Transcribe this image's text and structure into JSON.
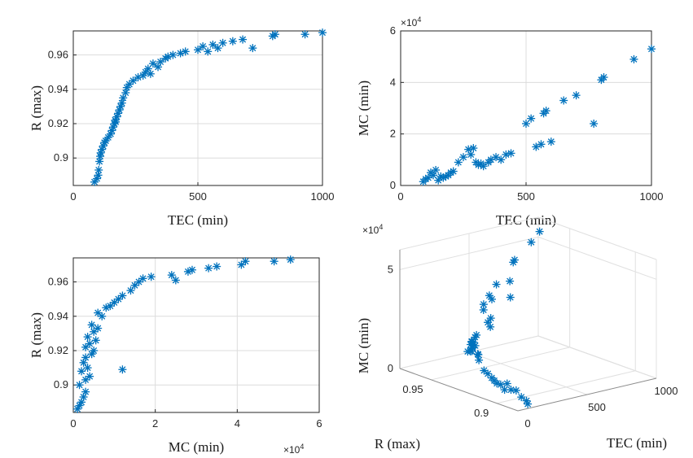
{
  "colors": {
    "marker": "#0072BD",
    "axis": "#262626",
    "grid": "#dcdcdc"
  },
  "chart_data": [
    {
      "id": "tl",
      "type": "scatter",
      "marker": "asterisk",
      "xlabel": "TEC    (min)",
      "ylabel": "R (max)",
      "xlim": [
        0,
        1000
      ],
      "ylim": [
        0.884,
        0.974
      ],
      "xticks": [
        0,
        500,
        1000
      ],
      "yticks": [
        0.9,
        0.92,
        0.94,
        0.96
      ],
      "xtick_labels": [
        "0",
        "500",
        "1000"
      ],
      "ytick_labels": [
        "0.9",
        "0.92",
        "0.94",
        "0.96"
      ],
      "grid": true,
      "x": [
        85,
        95,
        100,
        102,
        105,
        108,
        110,
        115,
        120,
        125,
        130,
        140,
        150,
        155,
        160,
        165,
        168,
        170,
        175,
        180,
        185,
        190,
        195,
        200,
        210,
        215,
        225,
        240,
        260,
        280,
        290,
        300,
        310,
        320,
        340,
        350,
        370,
        380,
        400,
        430,
        450,
        500,
        520,
        540,
        560,
        580,
        600,
        640,
        680,
        720,
        800,
        810,
        930,
        1000
      ],
      "y": [
        0.886,
        0.888,
        0.89,
        0.893,
        0.898,
        0.901,
        0.903,
        0.905,
        0.907,
        0.909,
        0.91,
        0.912,
        0.914,
        0.916,
        0.918,
        0.92,
        0.922,
        0.921,
        0.924,
        0.926,
        0.928,
        0.93,
        0.932,
        0.935,
        0.938,
        0.941,
        0.943,
        0.945,
        0.947,
        0.948,
        0.95,
        0.952,
        0.949,
        0.955,
        0.953,
        0.956,
        0.958,
        0.959,
        0.96,
        0.961,
        0.962,
        0.963,
        0.965,
        0.962,
        0.966,
        0.964,
        0.967,
        0.968,
        0.969,
        0.964,
        0.971,
        0.972,
        0.972,
        0.973
      ]
    },
    {
      "id": "tr",
      "type": "scatter",
      "marker": "asterisk",
      "xlabel": "TEC    (min)",
      "ylabel": "MC  (min)",
      "xlim": [
        0,
        1000
      ],
      "ylim": [
        0,
        6
      ],
      "xticks": [
        0,
        500,
        1000
      ],
      "yticks": [
        0,
        2,
        4,
        6
      ],
      "xtick_labels": [
        "0",
        "500",
        "1000"
      ],
      "ytick_labels": [
        "0",
        "2",
        "4",
        "6"
      ],
      "exponent_label": "×10",
      "exponent_power": "4",
      "grid": true,
      "x": [
        90,
        100,
        110,
        120,
        130,
        140,
        150,
        160,
        170,
        180,
        190,
        200,
        210,
        230,
        250,
        270,
        280,
        290,
        300,
        310,
        320,
        330,
        350,
        360,
        380,
        400,
        420,
        440,
        500,
        520,
        540,
        560,
        570,
        580,
        600,
        650,
        700,
        770,
        800,
        810,
        930,
        1000
      ],
      "y": [
        0.15,
        0.25,
        0.3,
        0.5,
        0.4,
        0.6,
        0.2,
        0.35,
        0.3,
        0.35,
        0.4,
        0.5,
        0.55,
        0.9,
        1.1,
        1.4,
        1.2,
        1.45,
        0.9,
        0.8,
        0.85,
        0.75,
        0.9,
        1.0,
        1.1,
        1.0,
        1.2,
        1.25,
        2.4,
        2.6,
        1.5,
        1.6,
        2.8,
        2.9,
        1.7,
        3.3,
        3.5,
        2.4,
        4.1,
        4.2,
        4.9,
        5.3
      ]
    },
    {
      "id": "bl",
      "type": "scatter",
      "marker": "asterisk",
      "xlabel": "MC    (min)",
      "ylabel": "R (max)",
      "xlim": [
        0,
        6
      ],
      "ylim": [
        0.884,
        0.974
      ],
      "xticks": [
        0,
        2,
        4,
        6
      ],
      "yticks": [
        0.9,
        0.92,
        0.94,
        0.96
      ],
      "xtick_labels": [
        "0",
        "2",
        "4",
        "6"
      ],
      "ytick_labels": [
        "0.9",
        "0.92",
        "0.94",
        "0.96"
      ],
      "exponent_label": "×10",
      "exponent_power": "4",
      "grid": true,
      "x": [
        0.1,
        0.15,
        0.2,
        0.25,
        0.3,
        0.15,
        0.3,
        0.4,
        0.2,
        0.35,
        0.25,
        0.3,
        0.45,
        0.5,
        0.3,
        0.4,
        0.55,
        0.35,
        0.5,
        0.6,
        0.45,
        0.7,
        0.6,
        1.2,
        0.8,
        0.9,
        1.0,
        1.1,
        1.2,
        1.4,
        1.5,
        1.6,
        1.7,
        1.9,
        2.4,
        2.5,
        2.8,
        2.9,
        3.3,
        3.5,
        4.1,
        4.2,
        4.9,
        5.3
      ],
      "y": [
        0.886,
        0.888,
        0.89,
        0.893,
        0.896,
        0.9,
        0.903,
        0.905,
        0.908,
        0.91,
        0.913,
        0.916,
        0.918,
        0.92,
        0.922,
        0.924,
        0.926,
        0.928,
        0.931,
        0.933,
        0.935,
        0.94,
        0.942,
        0.909,
        0.945,
        0.946,
        0.948,
        0.95,
        0.952,
        0.955,
        0.958,
        0.96,
        0.962,
        0.963,
        0.964,
        0.961,
        0.966,
        0.967,
        0.968,
        0.969,
        0.97,
        0.972,
        0.972,
        0.973
      ]
    },
    {
      "id": "br",
      "type": "scatter3d",
      "marker": "asterisk",
      "xlabel": "TEC    (min)",
      "ylabel": "R (max)",
      "zlabel": "MC  (min)",
      "xlim": [
        0,
        1000
      ],
      "ylim": [
        0.884,
        0.974
      ],
      "zlim": [
        0,
        6
      ],
      "xticks": [
        0,
        500,
        1000
      ],
      "yticks": [
        0.9,
        0.95
      ],
      "zticks": [
        0,
        5
      ],
      "xtick_labels": [
        "0",
        "500",
        "1000"
      ],
      "ytick_labels": [
        "0.9",
        "0.95"
      ],
      "ztick_labels": [
        "0",
        "5"
      ],
      "exponent_label": "×10",
      "exponent_power": "4",
      "grid": true,
      "x": [
        90,
        100,
        110,
        120,
        130,
        140,
        150,
        160,
        170,
        180,
        190,
        200,
        210,
        230,
        250,
        270,
        280,
        290,
        300,
        310,
        320,
        330,
        350,
        360,
        380,
        400,
        420,
        440,
        500,
        520,
        540,
        560,
        570,
        580,
        600,
        650,
        700,
        770,
        800,
        810,
        930,
        1000
      ],
      "y": [
        0.886,
        0.888,
        0.893,
        0.898,
        0.903,
        0.907,
        0.91,
        0.914,
        0.918,
        0.921,
        0.924,
        0.928,
        0.932,
        0.938,
        0.941,
        0.945,
        0.948,
        0.95,
        0.952,
        0.955,
        0.953,
        0.949,
        0.956,
        0.958,
        0.959,
        0.96,
        0.961,
        0.962,
        0.963,
        0.965,
        0.962,
        0.966,
        0.964,
        0.967,
        0.968,
        0.969,
        0.964,
        0.971,
        0.972,
        0.972,
        0.972,
        0.973
      ],
      "z": [
        0.15,
        0.25,
        0.3,
        0.5,
        0.4,
        0.6,
        0.2,
        0.35,
        0.3,
        0.35,
        0.4,
        0.5,
        0.55,
        0.9,
        1.1,
        1.4,
        1.2,
        1.45,
        0.9,
        0.8,
        0.85,
        0.75,
        0.9,
        1.0,
        1.1,
        1.0,
        1.2,
        1.25,
        2.4,
        2.6,
        1.5,
        1.6,
        2.8,
        2.9,
        1.7,
        3.3,
        3.5,
        2.4,
        4.1,
        4.2,
        4.9,
        5.3
      ]
    }
  ]
}
